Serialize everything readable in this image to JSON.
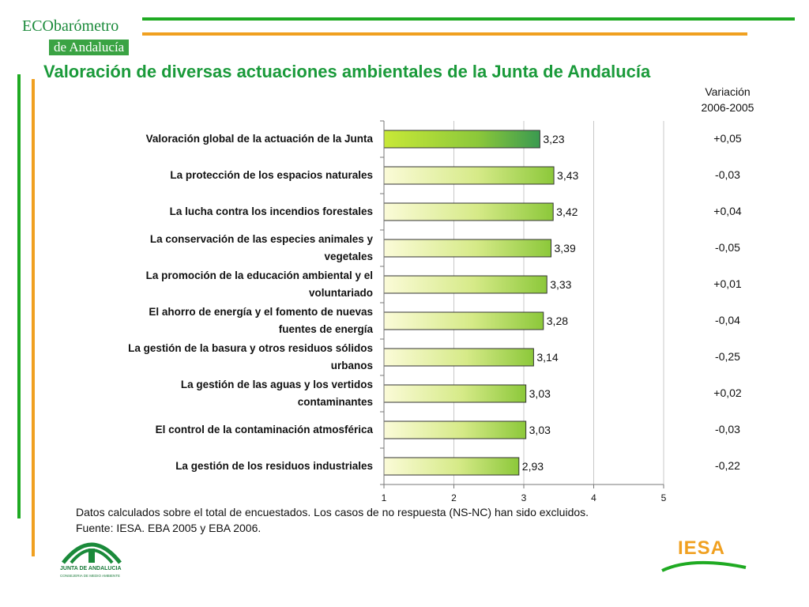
{
  "logo": {
    "line1": "ECObarómetro",
    "line2": "de Andalucía"
  },
  "title": "Valoración de diversas actuaciones ambientales de la Junta de Andalucía",
  "variation_header": {
    "line1": "Variación",
    "line2": "2006-2005"
  },
  "footer": {
    "note": "Datos calculados sobre el total de encuestados. Los casos de no respuesta (NS-NC) han sido excluidos.",
    "source": "Fuente: IESA. EBA 2005 y EBA 2006."
  },
  "junta_logo": {
    "name": "JUNTA DE ANDALUCIA",
    "sub": "CONSEJERIA DE MEDIO AMBIENTE"
  },
  "iesa_logo": "IESA",
  "colors": {
    "title_green": "#1a9a3a",
    "line_green": "#1faa22",
    "line_orange": "#f0a020",
    "bar_light": "#fbfbd8",
    "bar_dark": "#8cc83a"
  },
  "chart_data": {
    "type": "bar",
    "orientation": "horizontal",
    "categories": [
      [
        "Valoración global de la actuación de la Junta"
      ],
      [
        "La protección de los espacios naturales"
      ],
      [
        "La lucha contra los incendios forestales"
      ],
      [
        "La conservación de las especies animales y",
        "vegetales"
      ],
      [
        "La promoción de la educación ambiental y el",
        "voluntariado"
      ],
      [
        "El ahorro de energía y el fomento de nuevas",
        "fuentes de energía"
      ],
      [
        "La gestión de la basura y otros residuos sólidos",
        "urbanos"
      ],
      [
        "La gestión de las aguas y los vertidos",
        "contaminantes"
      ],
      [
        "El control de la contaminación atmosférica"
      ],
      [
        "La gestión de los residuos industriales"
      ]
    ],
    "values": [
      3.23,
      3.43,
      3.42,
      3.39,
      3.33,
      3.28,
      3.14,
      3.03,
      3.03,
      2.93
    ],
    "value_labels": [
      "3,23",
      "3,43",
      "3,42",
      "3,39",
      "3,33",
      "3,28",
      "3,14",
      "3,03",
      "3,03",
      "2,93"
    ],
    "variation": [
      "+0,05",
      "-0,03",
      "+0,04",
      "-0,05",
      "+0,01",
      "-0,04",
      "-0,25",
      "+0,02",
      "-0,03",
      "-0,22"
    ],
    "xlim": [
      1,
      5
    ],
    "xticks": [
      1,
      2,
      3,
      4,
      5
    ],
    "grid": true
  }
}
